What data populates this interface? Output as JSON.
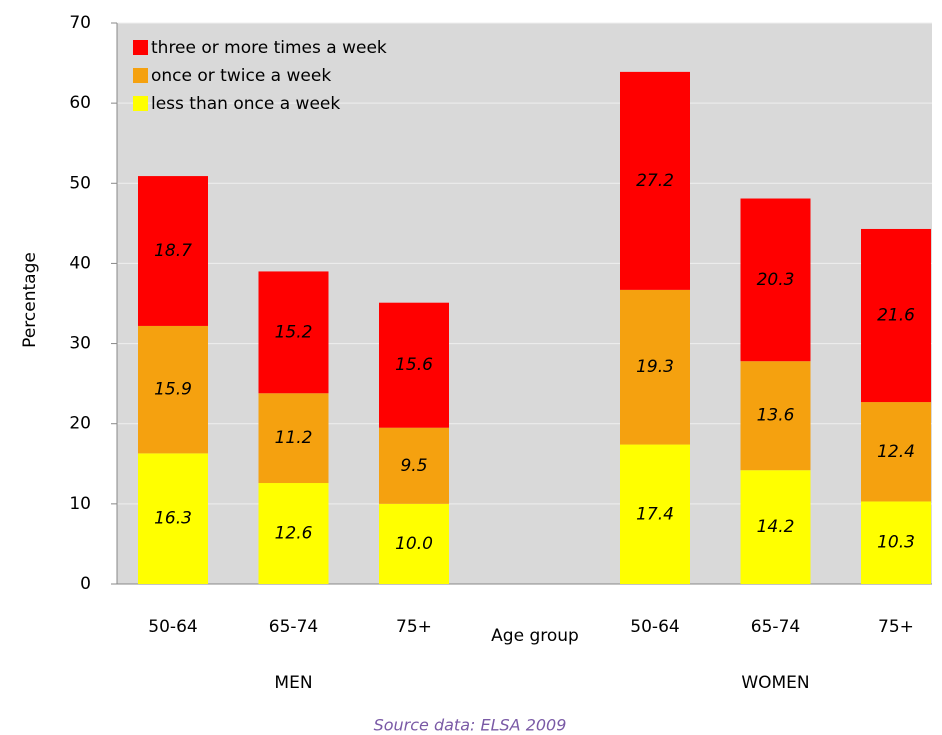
{
  "chart_data": {
    "type": "stacked_bar",
    "x_label": "Age group",
    "y_label": "Percentage",
    "source": "Source data: ELSA 2009",
    "categories": [
      "50-64",
      "65-74",
      "75+",
      null,
      "50-64",
      "65-74",
      "75+"
    ],
    "groups": [
      "MEN",
      "WOMEN"
    ],
    "series": [
      {
        "name": "less than once a week",
        "color": "#ffff00",
        "values": [
          16.3,
          12.6,
          10.0,
          null,
          17.4,
          14.2,
          10.3
        ],
        "value_labels": [
          "16.3",
          "12.6",
          "10.0",
          null,
          "17.4",
          "14.2",
          "10.3"
        ]
      },
      {
        "name": "once or twice a week",
        "color": "#f5a10f",
        "values": [
          15.9,
          11.2,
          9.5,
          null,
          19.3,
          13.6,
          12.4
        ],
        "value_labels": [
          "15.9",
          "11.2",
          "9.5",
          null,
          "19.3",
          "13.6",
          "12.4"
        ]
      },
      {
        "name": "three or more times a week",
        "color": "#ff0000",
        "values": [
          18.7,
          15.2,
          15.6,
          null,
          27.2,
          20.3,
          21.6
        ],
        "value_labels": [
          "18.7",
          "15.2",
          "15.6",
          null,
          "27.2",
          "20.3",
          "21.6"
        ]
      }
    ],
    "ylim": [
      0,
      70
    ],
    "yticks": [
      0,
      10,
      20,
      30,
      40,
      50,
      60,
      70
    ],
    "grid": true,
    "legend": "top-left"
  }
}
